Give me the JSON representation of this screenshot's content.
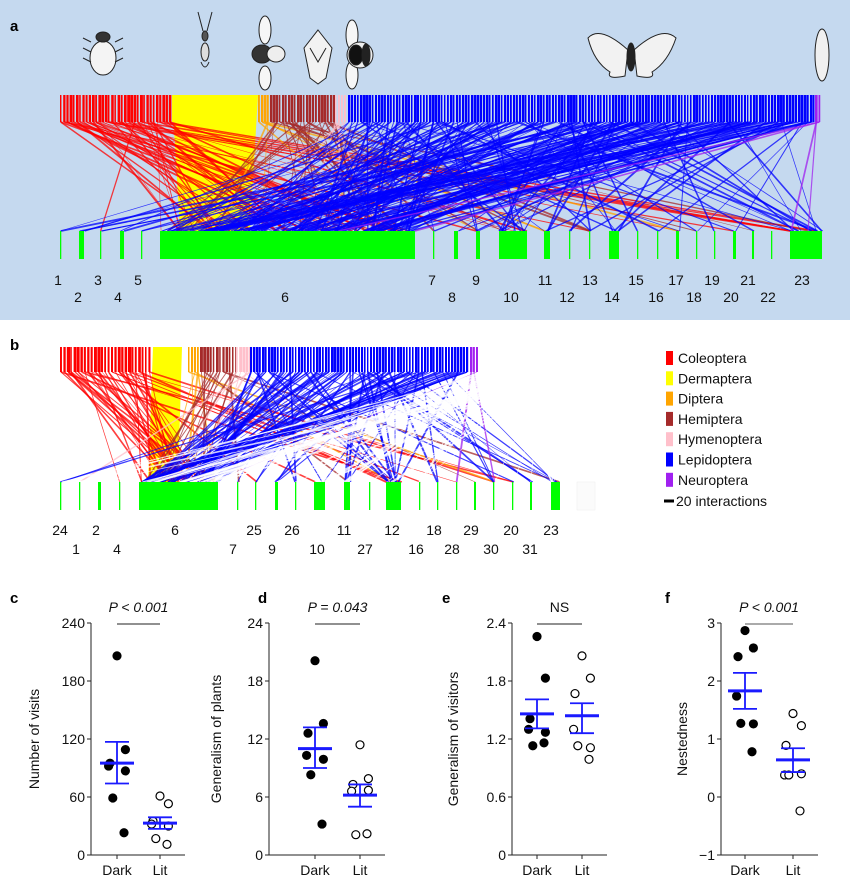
{
  "panel_labels": {
    "a": "a",
    "b": "b",
    "c": "c",
    "d": "d",
    "e": "e",
    "f": "f"
  },
  "colors": {
    "panel_a_background": "#c5d9ef",
    "plants": "#00ff00",
    "Coleoptera": "#ff0000",
    "Dermaptera": "#ffff00",
    "Diptera": "#ffa500",
    "Hemiptera": "#a52a2a",
    "Hymenoptera": "#ffc0cb",
    "Lepidoptera": "#0000ff",
    "Neuroptera": "#a020f0",
    "mean_se": "#1a1aff"
  },
  "insect_icons": [
    "beetle-icon",
    "earwig-icon",
    "fly-icon",
    "shield-bug-icon",
    "bumblebee-icon",
    "moth-icon",
    "lacewing-icon"
  ],
  "networks": {
    "a": {
      "plant_labels": [
        "1",
        "2",
        "3",
        "4",
        "5",
        "6",
        "7",
        "8",
        "9",
        "10",
        "11",
        "12",
        "13",
        "14",
        "15",
        "16",
        "17",
        "18",
        "19",
        "20",
        "21",
        "22",
        "23"
      ]
    },
    "b": {
      "plant_labels": [
        "24",
        "1",
        "2",
        "4",
        "6",
        "7",
        "25",
        "9",
        "26",
        "10",
        "11",
        "27",
        "12",
        "16",
        "18",
        "28",
        "29",
        "30",
        "20",
        "31",
        "23"
      ]
    }
  },
  "legend": {
    "items": [
      {
        "label": "Coleoptera",
        "color": "#ff0000"
      },
      {
        "label": "Dermaptera",
        "color": "#ffff00"
      },
      {
        "label": "Diptera",
        "color": "#ffa500"
      },
      {
        "label": "Hemiptera",
        "color": "#a52a2a"
      },
      {
        "label": "Hymenoptera",
        "color": "#ffc0cb"
      },
      {
        "label": "Lepidoptera",
        "color": "#0000ff"
      },
      {
        "label": "Neuroptera",
        "color": "#a020f0"
      }
    ],
    "scale_label": "20 interactions"
  },
  "chart_data": [
    {
      "panel": "c",
      "type": "scatter",
      "ylabel": "Number of visits",
      "ylim": [
        0,
        240
      ],
      "yticks": [
        "0",
        "60",
        "120",
        "180",
        "240"
      ],
      "categories": [
        "Dark",
        "Lit"
      ],
      "significance": "P < 0.001",
      "series": [
        {
          "category": "Dark",
          "filled": true,
          "values": [
            206,
            109,
            95,
            92,
            87,
            59,
            23
          ],
          "mean": 95,
          "se": [
            74,
            117
          ]
        },
        {
          "category": "Lit",
          "filled": false,
          "values": [
            61,
            53,
            35,
            32,
            30,
            17,
            11
          ],
          "mean": 33,
          "se": [
            27,
            39
          ]
        }
      ]
    },
    {
      "panel": "d",
      "type": "scatter",
      "ylabel": "Generalism of plants",
      "ylim": [
        0,
        24
      ],
      "yticks": [
        "0",
        "6",
        "12",
        "18",
        "24"
      ],
      "categories": [
        "Dark",
        "Lit"
      ],
      "significance": "P = 0.043",
      "series": [
        {
          "category": "Dark",
          "filled": true,
          "values": [
            20.1,
            13.6,
            12.6,
            10.3,
            9.9,
            8.3,
            3.2
          ],
          "mean": 11.0,
          "se": [
            9.0,
            13.2
          ]
        },
        {
          "category": "Lit",
          "filled": false,
          "values": [
            11.4,
            7.9,
            7.3,
            6.6,
            6.7,
            2.1,
            2.2
          ],
          "mean": 6.2,
          "se": [
            5.0,
            7.3
          ]
        }
      ]
    },
    {
      "panel": "e",
      "type": "scatter",
      "ylabel": "Generalism of visitors",
      "ylim": [
        0,
        2.4
      ],
      "yticks": [
        "0",
        "0.6",
        "1.2",
        "1.8",
        "2.4"
      ],
      "categories": [
        "Dark",
        "Lit"
      ],
      "significance": "NS",
      "series": [
        {
          "category": "Dark",
          "filled": true,
          "values": [
            2.26,
            1.83,
            1.41,
            1.3,
            1.27,
            1.13,
            1.16
          ],
          "mean": 1.46,
          "se": [
            1.31,
            1.61
          ]
        },
        {
          "category": "Lit",
          "filled": false,
          "values": [
            2.06,
            1.83,
            1.67,
            1.3,
            1.11,
            1.13,
            0.99
          ],
          "mean": 1.44,
          "se": [
            1.26,
            1.57
          ]
        }
      ]
    },
    {
      "panel": "f",
      "type": "scatter",
      "ylabel": "Nestedness",
      "ylim": [
        -1,
        3
      ],
      "yticks": [
        "−1",
        "0",
        "1",
        "2",
        "3"
      ],
      "categories": [
        "Dark",
        "Lit"
      ],
      "significance": "P < 0.001",
      "series": [
        {
          "category": "Dark",
          "filled": true,
          "values": [
            2.87,
            2.57,
            2.42,
            1.74,
            1.26,
            1.27,
            0.78
          ],
          "mean": 1.83,
          "se": [
            1.52,
            2.14
          ]
        },
        {
          "category": "Lit",
          "filled": false,
          "values": [
            1.44,
            1.23,
            0.89,
            0.38,
            0.4,
            0.38,
            -0.24
          ],
          "mean": 0.64,
          "se": [
            0.43,
            0.84
          ]
        }
      ]
    }
  ]
}
